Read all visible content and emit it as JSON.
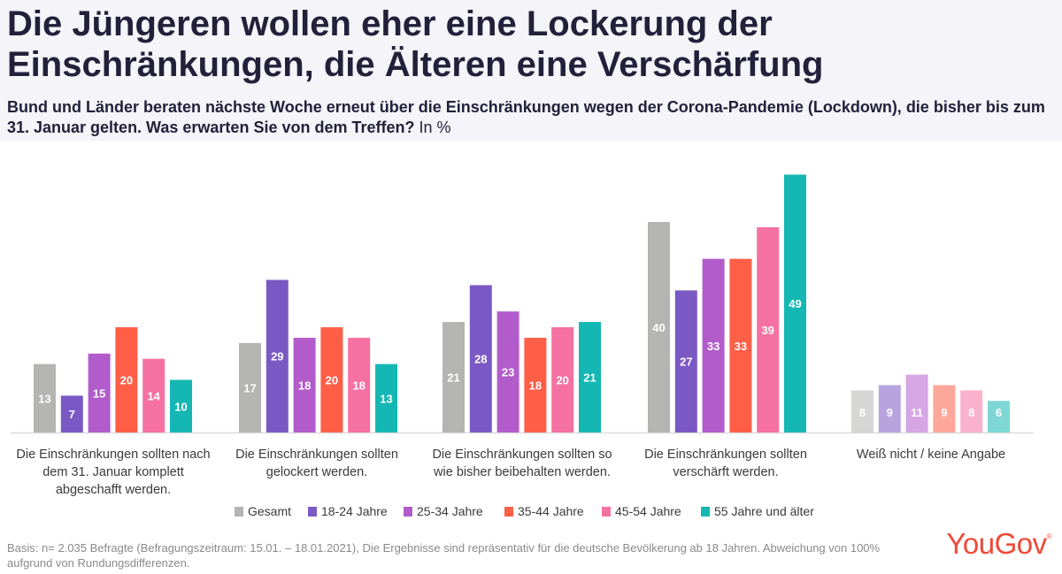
{
  "title": "Die Jüngeren wollen eher eine Lockerung der Einschränkungen, die Älteren eine Verschärfung",
  "subtitle": {
    "question": "Bund und Länder beraten nächste Woche erneut über die Einschränkungen wegen der Corona-Pandemie (Lockdown), die bisher bis zum 31. Januar gelten. Was erwarten Sie von dem Treffen?",
    "unit": "In %"
  },
  "footer": "Basis: n= 2.035 Befragte (Befragungszeitraum: 15.01. – 18.01.2021), Die Ergebnisse sind repräsentativ für die deutsche Bevölkerung ab 18 Jahren.  Abweichung von 100% aufgrund von Rundungsdifferenzen.",
  "logo": "YouGov",
  "logo_mark": "®",
  "chart_data": {
    "type": "bar",
    "ylabel": "In %",
    "ylim": [
      0,
      50
    ],
    "grid": false,
    "legend_position": "bottom",
    "categories": [
      [
        "Die Einschränkungen sollten nach",
        "dem 31. Januar komplett",
        "abgeschafft werden."
      ],
      [
        "Die Einschränkungen sollten",
        "gelockert werden."
      ],
      [
        "Die Einschränkungen sollten so",
        "wie bisher beibehalten werden."
      ],
      [
        "Die Einschränkungen sollten",
        "verschärft werden."
      ],
      [
        "Weiß nicht / keine Angabe"
      ]
    ],
    "faded_categories": [
      4
    ],
    "series": [
      {
        "name": "Gesamt",
        "color": "#b4b4b2",
        "values": [
          13,
          17,
          21,
          40,
          8
        ]
      },
      {
        "name": "18-24 Jahre",
        "color": "#7b59c4",
        "values": [
          7,
          29,
          28,
          27,
          9
        ]
      },
      {
        "name": "25-34 Jahre",
        "color": "#b25ccc",
        "values": [
          15,
          18,
          23,
          33,
          11
        ]
      },
      {
        "name": "35-44 Jahre",
        "color": "#ff5e47",
        "values": [
          20,
          20,
          18,
          33,
          9
        ]
      },
      {
        "name": "45-54 Jahre",
        "color": "#f571a1",
        "values": [
          14,
          18,
          20,
          39,
          8
        ]
      },
      {
        "name": "55 Jahre und älter",
        "color": "#14b7b3",
        "values": [
          10,
          13,
          21,
          49,
          6
        ]
      }
    ]
  }
}
